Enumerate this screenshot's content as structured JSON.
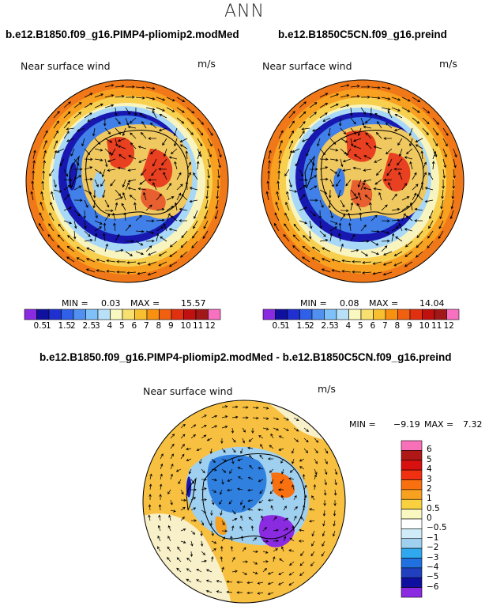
{
  "page_title": "ANN",
  "panels": [
    {
      "run_title": "b.e12.B1850.f09_g16.PIMP4-pliomip2.modMed",
      "variable": "Near surface wind",
      "units": "m/s",
      "min_label": "MIN =",
      "min_value": "0.03",
      "max_label": "MAX =",
      "max_value": "15.57"
    },
    {
      "run_title": "b.e12.B1850C5CN.f09_g16.preind",
      "variable": "Near surface wind",
      "units": "m/s",
      "min_label": "MIN =",
      "min_value": "0.08",
      "max_label": "MAX =",
      "max_value": "14.04"
    },
    {
      "run_title": "b.e12.B1850.f09_g16.PIMP4-pliomip2.modMed - b.e12.B1850C5CN.f09_g16.preind",
      "variable": "Near surface wind",
      "units": "m/s",
      "min_label": "MIN =",
      "min_value": "−9.19",
      "max_label": "MAX =",
      "max_value": "7.32"
    }
  ],
  "speed_colorbar": {
    "labels": [
      "0.5",
      "1",
      "1.5",
      "2",
      "2.5",
      "3",
      "4",
      "5",
      "6",
      "7",
      "8",
      "9",
      "10",
      "11",
      "12"
    ],
    "colors": [
      "#8a2be2",
      "#1010a0",
      "#2030d0",
      "#3060e8",
      "#5090f0",
      "#80c0f8",
      "#b8e0f8",
      "#f8f8c0",
      "#f8e070",
      "#f8c030",
      "#f89010",
      "#f06010",
      "#e03010",
      "#c01010",
      "#a01818",
      "#f870c0"
    ]
  },
  "diff_colorbar": {
    "labels": [
      "6",
      "5",
      "4",
      "3",
      "2",
      "1",
      "0.5",
      "0",
      "−0.5",
      "−1",
      "−2",
      "−3",
      "−4",
      "−5",
      "−6"
    ],
    "colors": [
      "#f870b8",
      "#b01818",
      "#d81010",
      "#f03010",
      "#f87010",
      "#f8a020",
      "#f8d040",
      "#f8f8c0",
      "#ffffff",
      "#d0ecf8",
      "#a0d0f0",
      "#30a8f0",
      "#2070e0",
      "#2040c0",
      "#1010a0",
      "#8a2be2"
    ]
  },
  "colors": {
    "ring_outer": "#f08020",
    "ring_mid": "#f8c040",
    "ring_inner": "#f8f0a0",
    "band_light": "#a8d8f8",
    "band_dark": "#1818b0",
    "land_low": "#f0c860",
    "land_high": "#e04020",
    "diff_ocean": "#f8c040",
    "diff_pale": "#f8f0c8",
    "diff_blue": "#5090e8"
  }
}
